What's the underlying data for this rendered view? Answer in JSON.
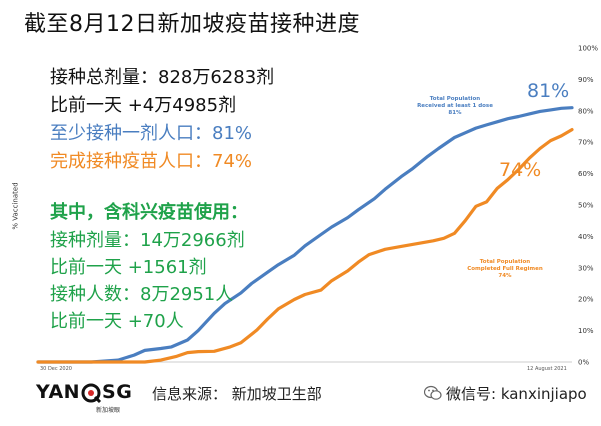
{
  "title": "截至8月12日新加坡疫苗接种进度",
  "stats": {
    "line1": "接种总剂量：828万6283剂",
    "line2": "比前一天 +4万4985剂",
    "line3": "至少接种一剂人口：81%",
    "line4": "完成接种疫苗人口：74%"
  },
  "sinovac": {
    "heading": "其中，含科兴疫苗使用：",
    "line1": "接种剂量：14万2966剂",
    "line2": "比前一天 +1561剂",
    "line3": "接种人数：8万2951人",
    "line4": "比前一天 +70人"
  },
  "colors": {
    "blue": "#4a7ec0",
    "orange": "#f08a24",
    "green": "#1fa24a"
  },
  "chart_data": {
    "type": "line",
    "ylabel": "% Vaccinated",
    "ylim": [
      0,
      100
    ],
    "y_ticks": [
      "0%",
      "10%",
      "20%",
      "30%",
      "40%",
      "50%",
      "60%",
      "70%",
      "80%",
      "90%",
      "100%"
    ],
    "x_labels": [
      "30 Dec 2020",
      "12 August 2021"
    ],
    "grid": false,
    "series": [
      {
        "name": "Total Population Received at least 1 dose",
        "label_lines": [
          "Total Population",
          "Received at least 1 dose",
          "81%"
        ],
        "big_label": "81%",
        "color": "#4a7ec0",
        "x": [
          0,
          0.05,
          0.1,
          0.15,
          0.18,
          0.2,
          0.23,
          0.25,
          0.28,
          0.3,
          0.33,
          0.35,
          0.38,
          0.4,
          0.43,
          0.45,
          0.48,
          0.5,
          0.53,
          0.55,
          0.58,
          0.6,
          0.63,
          0.65,
          0.68,
          0.7,
          0.73,
          0.75,
          0.78,
          0.8,
          0.82,
          0.84,
          0.86,
          0.88,
          0.9,
          0.92,
          0.94,
          0.96,
          0.98,
          1.0
        ],
        "values": [
          0,
          0,
          0,
          0.6,
          2.2,
          3.7,
          4.3,
          4.8,
          7.0,
          10.0,
          15.5,
          18.6,
          22.0,
          25.0,
          28.6,
          31.0,
          34.0,
          37.0,
          40.6,
          43.0,
          46.0,
          48.5,
          52.0,
          55.0,
          59.0,
          61.4,
          65.5,
          68.0,
          71.5,
          73.0,
          74.5,
          75.5,
          76.5,
          77.5,
          78.2,
          79.0,
          79.8,
          80.3,
          80.8,
          81.0
        ]
      },
      {
        "name": "Total Population Completed Full Regimen",
        "label_lines": [
          "Total Population",
          "Completed Full Regimen",
          "74%"
        ],
        "big_label": "74%",
        "color": "#f08a24",
        "x": [
          0,
          0.1,
          0.2,
          0.23,
          0.26,
          0.28,
          0.3,
          0.33,
          0.36,
          0.38,
          0.41,
          0.43,
          0.45,
          0.48,
          0.5,
          0.53,
          0.55,
          0.58,
          0.6,
          0.62,
          0.65,
          0.68,
          0.7,
          0.72,
          0.74,
          0.76,
          0.78,
          0.8,
          0.82,
          0.84,
          0.86,
          0.88,
          0.9,
          0.92,
          0.94,
          0.96,
          0.98,
          1.0
        ],
        "values": [
          0,
          0,
          0,
          0.6,
          1.8,
          3.0,
          3.3,
          3.4,
          4.8,
          6.1,
          10.2,
          13.7,
          16.9,
          19.9,
          21.5,
          22.9,
          25.9,
          29.0,
          31.8,
          34.2,
          35.9,
          36.8,
          37.4,
          38.0,
          38.6,
          39.4,
          41.0,
          45.0,
          49.6,
          51.0,
          55.3,
          58.1,
          61.3,
          64.9,
          68.0,
          70.5,
          72.0,
          74.0
        ]
      }
    ]
  },
  "footer": {
    "logo_left": "YAN",
    "logo_right": "SG",
    "logo_sub": "新加坡眼",
    "source": "信息来源：  新加坡卫生部",
    "wechat": "微信号: kanxinjiapo"
  }
}
